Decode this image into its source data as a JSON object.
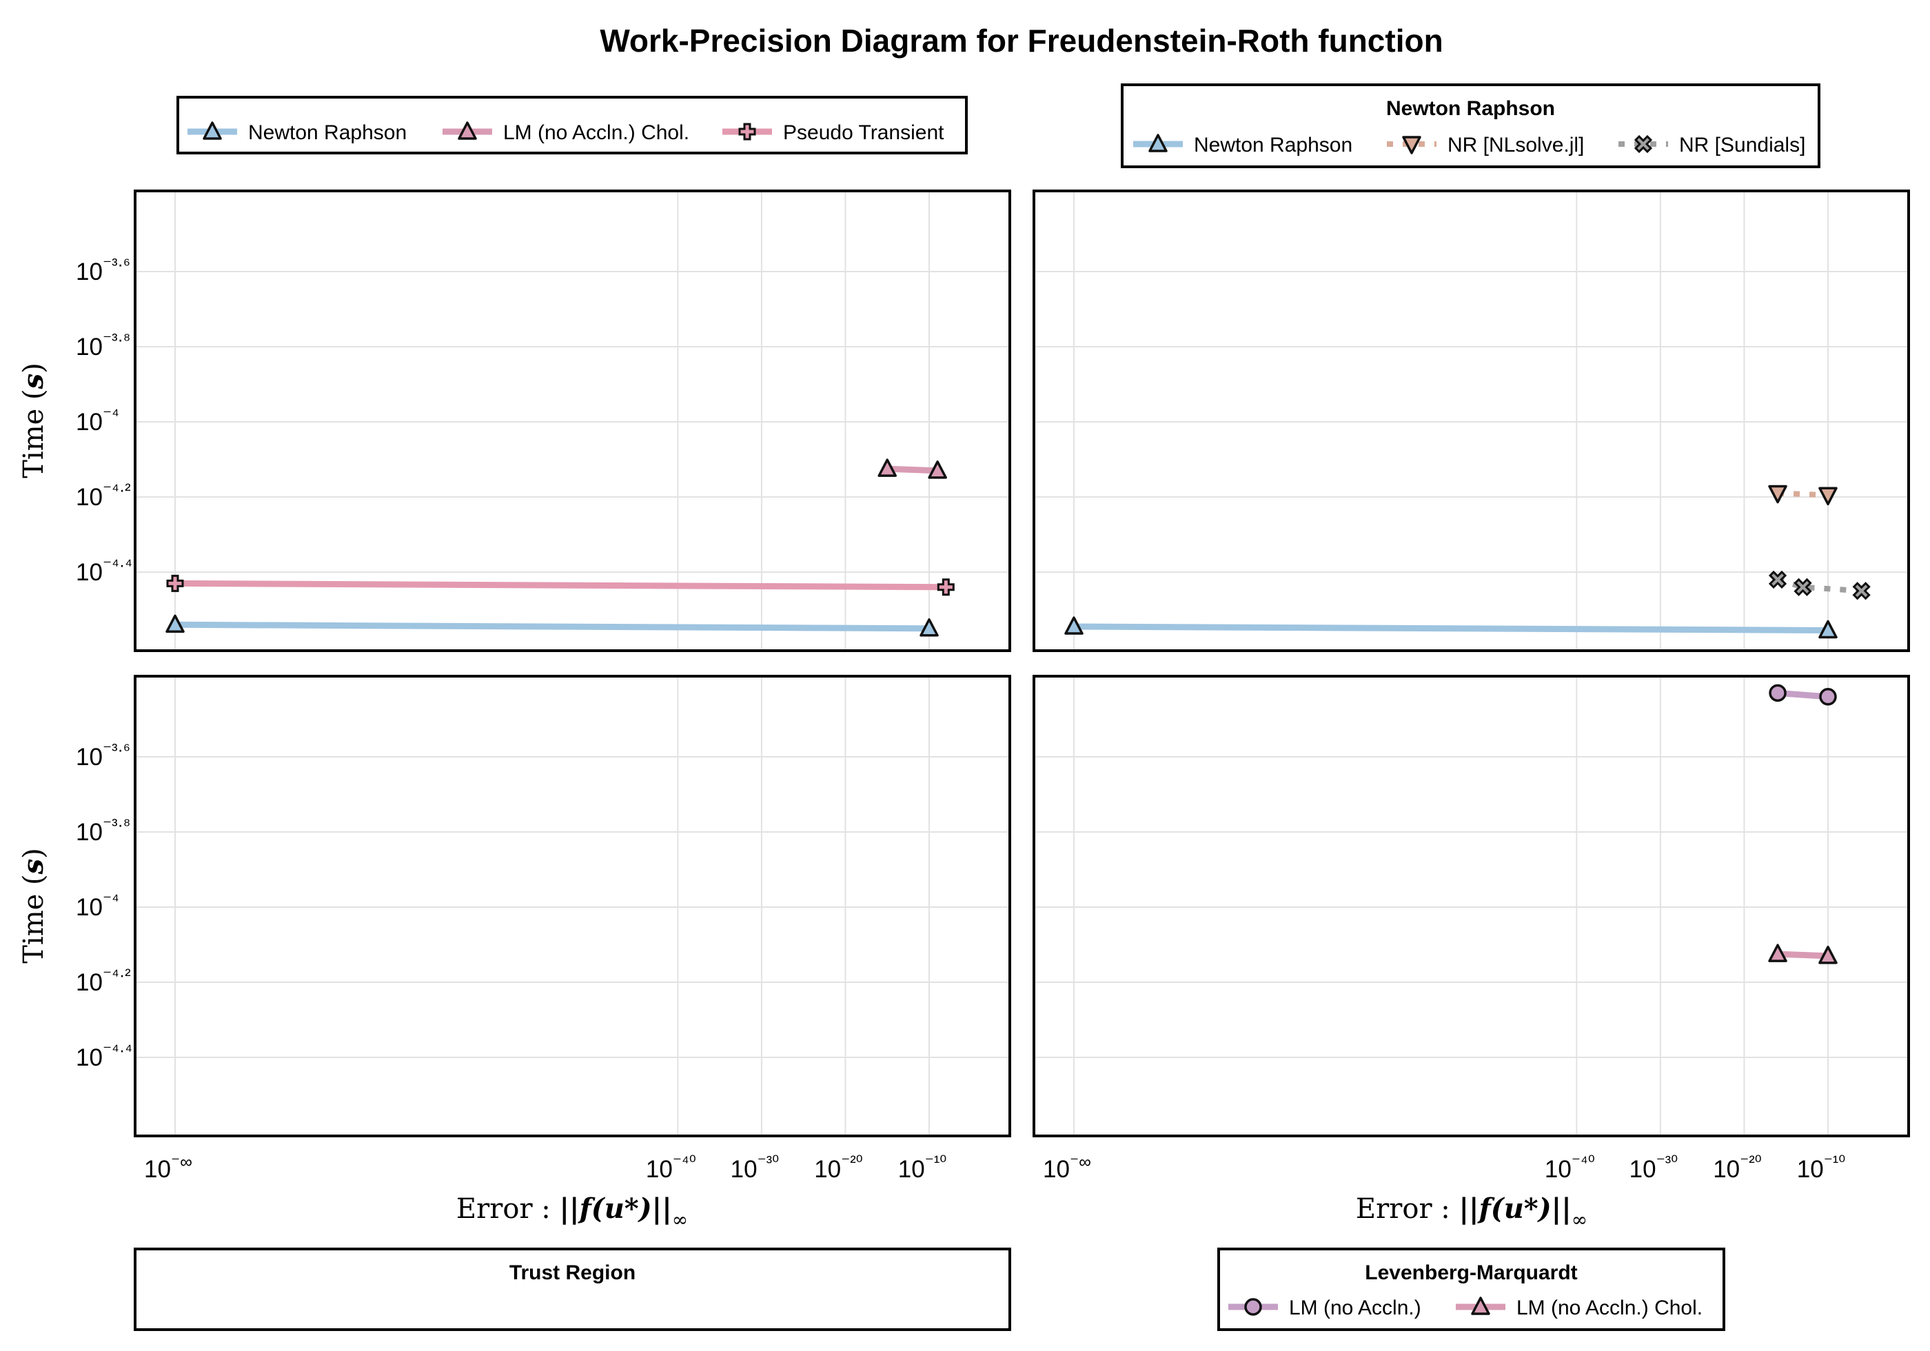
{
  "chart_data": {
    "type": "scatter",
    "title": "Work-Precision Diagram for Freudenstein-Roth function",
    "ylabel": "Time (s)",
    "xlabel": "Error : ||f(u*)||∞",
    "x_scale": "log10 (with -∞ position for zero error)",
    "y_scale": "log10",
    "x_ticks": [
      "10⁻∞",
      "10⁻⁴⁰",
      "10⁻³⁰",
      "10⁻²⁰",
      "10⁻¹⁰"
    ],
    "x_tick_exponents": [
      -100,
      -40,
      -30,
      -20,
      -10
    ],
    "y_ticks": [
      "10⁻³·⁶",
      "10⁻³·⁸",
      "10⁻⁴",
      "10⁻⁴·²",
      "10⁻⁴·⁴"
    ],
    "y_tick_exponents": [
      -3.6,
      -3.8,
      -4.0,
      -4.2,
      -4.4
    ],
    "xlim_log10": [
      -105,
      1
    ],
    "ylim_log10": [
      -4.58,
      -3.38
    ],
    "grid": true,
    "panels": [
      {
        "id": "top-left",
        "legend_title": "",
        "legend_placement": "top",
        "series": [
          {
            "name": "Newton Raphson",
            "color": "#9ec4e0",
            "marker": "triangle",
            "line": "solid",
            "x_log10": [
              -100,
              -10
            ],
            "y_log10": [
              -4.54,
              -4.55
            ]
          },
          {
            "name": "LM (no Accln.) Chol.",
            "color": "#d99bb4",
            "marker": "triangle",
            "line": "solid",
            "x_log10": [
              -15,
              -9
            ],
            "y_log10": [
              -4.125,
              -4.13
            ]
          },
          {
            "name": "Pseudo Transient",
            "color": "#e39ab0",
            "marker": "cross",
            "line": "solid",
            "x_log10": [
              -100,
              -8
            ],
            "y_log10": [
              -4.43,
              -4.44
            ]
          }
        ]
      },
      {
        "id": "top-right",
        "legend_title": "Newton Raphson",
        "legend_placement": "top",
        "series": [
          {
            "name": "Newton Raphson",
            "color": "#9ec4e0",
            "marker": "triangle",
            "line": "solid",
            "x_log10": [
              -100,
              -10
            ],
            "y_log10": [
              -4.545,
              -4.555
            ]
          },
          {
            "name": "NR [NLsolve.jl]",
            "color": "#d8ab98",
            "marker": "inverted-triangle",
            "line": "dotted",
            "x_log10": [
              -16,
              -10
            ],
            "y_log10": [
              -4.19,
              -4.195
            ]
          },
          {
            "name": "NR [Sundials]",
            "color": "#a0a0a0",
            "marker": "x",
            "line": "dotted",
            "x_log10": [
              -16,
              -13,
              -6
            ],
            "y_log10": [
              -4.42,
              -4.44,
              -4.45
            ]
          }
        ]
      },
      {
        "id": "bottom-left",
        "legend_title": "Trust Region",
        "legend_placement": "bottom",
        "series": []
      },
      {
        "id": "bottom-right",
        "legend_title": "Levenberg-Marquardt",
        "legend_placement": "bottom",
        "series": [
          {
            "name": "LM (no Accln.)",
            "color": "#c59fc6",
            "marker": "circle",
            "line": "solid",
            "x_log10": [
              -16,
              -10
            ],
            "y_log10": [
              -3.43,
              -3.44
            ]
          },
          {
            "name": "LM (no Accln.) Chol.",
            "color": "#d99bb4",
            "marker": "triangle",
            "line": "solid",
            "x_log10": [
              -16,
              -10
            ],
            "y_log10": [
              -4.125,
              -4.13
            ]
          }
        ]
      }
    ]
  },
  "text": {
    "title": "Work-Precision Diagram for Freudenstein-Roth function",
    "ylabel_text": "Time",
    "ylabel_unit": "s",
    "xlabel_prefix": "Error :",
    "xlabel_expr": "||f(u*)||",
    "xlabel_sub": "∞"
  }
}
